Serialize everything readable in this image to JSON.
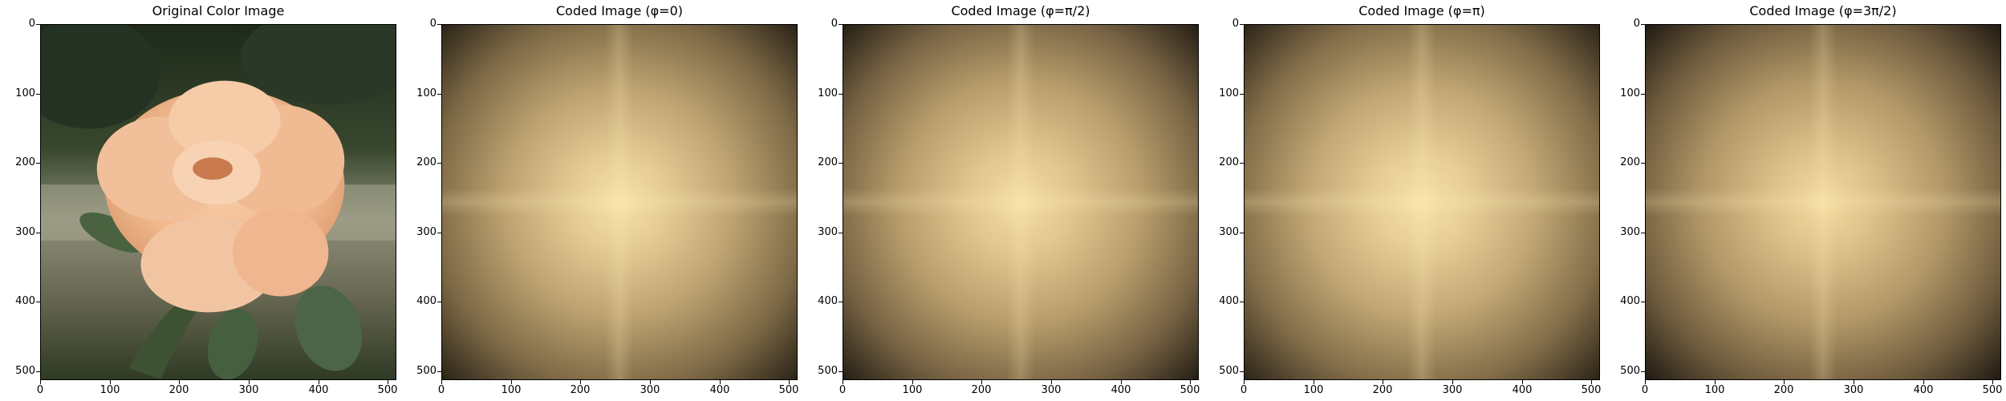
{
  "figure": {
    "panels": [
      {
        "title": "Original Color Image"
      },
      {
        "title": "Coded Image (φ=0)"
      },
      {
        "title": "Coded Image (φ=π/2)"
      },
      {
        "title": "Coded Image (φ=π)"
      },
      {
        "title": "Coded Image (φ=3π/2)"
      }
    ],
    "y_ticks": [
      "0",
      "100",
      "200",
      "300",
      "400",
      "500"
    ],
    "x_ticks": [
      "0",
      "100",
      "200",
      "300",
      "400",
      "500"
    ]
  },
  "colors": {
    "rose": "#f3b98f",
    "foliage": "#3f4a2e",
    "coded_center": "#f7e2a8",
    "coded_edge": "#2a2317"
  },
  "icons": {
    "photo": "rose-photo-icon"
  }
}
